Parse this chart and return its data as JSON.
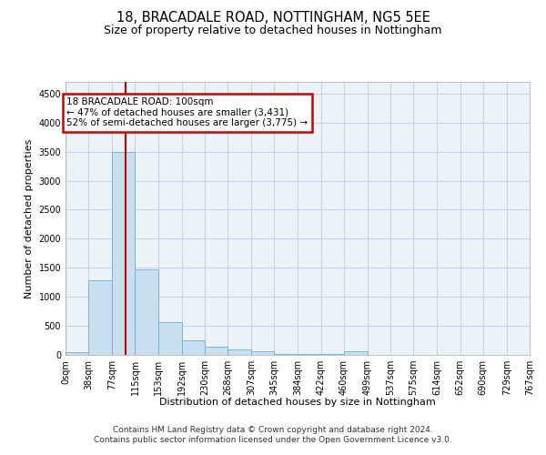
{
  "title": "18, BRACADALE ROAD, NOTTINGHAM, NG5 5EE",
  "subtitle": "Size of property relative to detached houses in Nottingham",
  "xlabel": "Distribution of detached houses by size in Nottingham",
  "ylabel": "Number of detached properties",
  "footer_line1": "Contains HM Land Registry data © Crown copyright and database right 2024.",
  "footer_line2": "Contains public sector information licensed under the Open Government Licence v3.0.",
  "bin_edges": [
    0,
    38,
    77,
    115,
    153,
    192,
    230,
    268,
    307,
    345,
    384,
    422,
    460,
    499,
    537,
    575,
    614,
    652,
    690,
    729,
    767
  ],
  "bar_heights": [
    40,
    1280,
    3500,
    1470,
    570,
    250,
    140,
    90,
    60,
    15,
    10,
    8,
    55,
    5,
    3,
    3,
    2,
    2,
    1,
    1
  ],
  "bar_color": "#c8dff0",
  "bar_edge_color": "#6baed6",
  "bar_edge_width": 0.6,
  "red_line_x": 100,
  "red_line_color": "#cc0000",
  "annotation_line1": "18 BRACADALE ROAD: 100sqm",
  "annotation_line2": "← 47% of detached houses are smaller (3,431)",
  "annotation_line3": "52% of semi-detached houses are larger (3,775) →",
  "annotation_box_edgecolor": "#cc0000",
  "annotation_box_facecolor": "#ffffff",
  "ylim": [
    0,
    4700
  ],
  "yticks": [
    0,
    500,
    1000,
    1500,
    2000,
    2500,
    3000,
    3500,
    4000,
    4500
  ],
  "grid_color": "#c5d5e5",
  "background_color": "#edf2f7",
  "title_fontsize": 10.5,
  "subtitle_fontsize": 9,
  "axis_label_fontsize": 8,
  "tick_fontsize": 7,
  "footer_fontsize": 6.5,
  "annotation_fontsize": 7.5
}
